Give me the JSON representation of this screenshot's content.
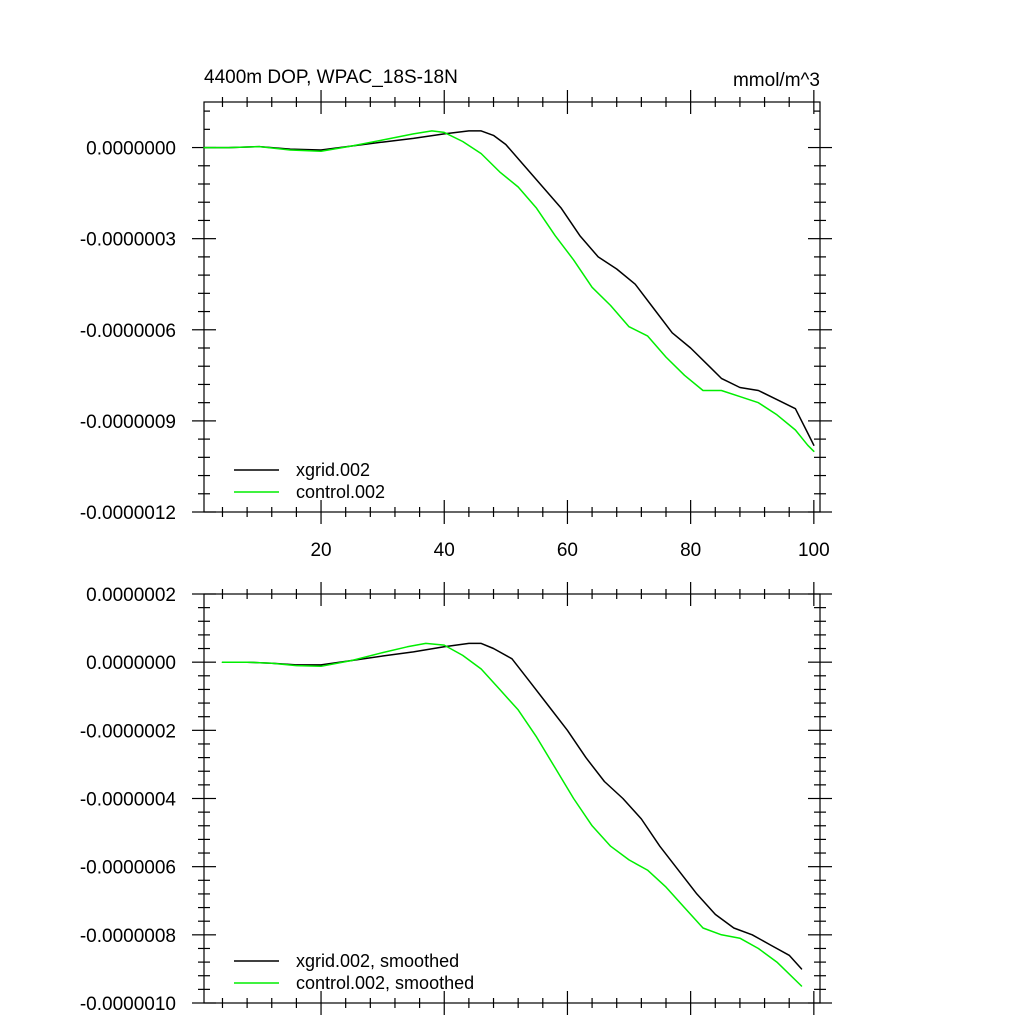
{
  "colors": {
    "xgrid": "#000000",
    "control": "#00ee00",
    "background": "#ffffff",
    "axis": "#000000"
  },
  "chart_data": [
    {
      "type": "line",
      "title": "4400m DOP, WPAC_18S-18N",
      "units": "mmol/m^3",
      "xlabel": "",
      "ylabel": "",
      "xlim": [
        1,
        101
      ],
      "ylim": [
        -1.2e-06,
        1.5e-07
      ],
      "x_ticks": [
        20,
        40,
        60,
        80,
        100
      ],
      "x_tick_labels": [
        "20",
        "40",
        "60",
        "80",
        "100"
      ],
      "y_ticks": [
        0,
        -3e-07,
        -6e-07,
        -9e-07,
        -1.2e-06
      ],
      "y_tick_labels": [
        "0.0000000",
        "-0.0000003",
        "-0.0000006",
        "-0.0000009",
        "-0.0000012"
      ],
      "legend_position": "bottom-left",
      "series": [
        {
          "name": "xgrid.002",
          "color": "#000000",
          "x": [
            1,
            5,
            10,
            15,
            20,
            25,
            30,
            35,
            40,
            44,
            46,
            48,
            50,
            53,
            56,
            59,
            62,
            65,
            68,
            71,
            74,
            77,
            80,
            83,
            85,
            88,
            91,
            94,
            97,
            99,
            100
          ],
          "y": [
            0,
            0,
            3e-09,
            -5e-09,
            -8e-09,
            5e-09,
            1.8e-08,
            3e-08,
            4.5e-08,
            5.5e-08,
            5.5e-08,
            4e-08,
            1e-08,
            -6e-08,
            -1.3e-07,
            -2e-07,
            -2.9e-07,
            -3.6e-07,
            -4e-07,
            -4.5e-07,
            -5.3e-07,
            -6.1e-07,
            -6.6e-07,
            -7.2e-07,
            -7.6e-07,
            -7.9e-07,
            -8e-07,
            -8.3e-07,
            -8.6e-07,
            -9.4e-07,
            -9.8e-07
          ]
        },
        {
          "name": "control.002",
          "color": "#00ee00",
          "x": [
            1,
            5,
            10,
            15,
            20,
            25,
            30,
            35,
            38,
            40,
            43,
            46,
            49,
            52,
            55,
            58,
            61,
            64,
            67,
            70,
            73,
            76,
            79,
            82,
            85,
            88,
            91,
            94,
            97,
            99,
            100
          ],
          "y": [
            0,
            0,
            3e-09,
            -8e-09,
            -1.2e-08,
            5e-09,
            2.5e-08,
            4.5e-08,
            5.5e-08,
            5e-08,
            2e-08,
            -2e-08,
            -8e-08,
            -1.3e-07,
            -2e-07,
            -2.9e-07,
            -3.7e-07,
            -4.6e-07,
            -5.2e-07,
            -5.9e-07,
            -6.2e-07,
            -6.9e-07,
            -7.5e-07,
            -8e-07,
            -8e-07,
            -8.2e-07,
            -8.4e-07,
            -8.8e-07,
            -9.3e-07,
            -9.8e-07,
            -1e-06
          ]
        }
      ]
    },
    {
      "type": "line",
      "title": "",
      "xlabel": "",
      "ylabel": "",
      "xlim": [
        1,
        101
      ],
      "ylim": [
        -1e-06,
        2e-07
      ],
      "x_ticks": [
        20,
        40,
        60,
        80,
        100
      ],
      "y_ticks": [
        2e-07,
        0,
        -2e-07,
        -4e-07,
        -6e-07,
        -8e-07,
        -1e-06
      ],
      "y_tick_labels": [
        "0.0000002",
        "0.0000000",
        "-0.0000002",
        "-0.0000004",
        "-0.0000006",
        "-0.0000008",
        "-0.0000010"
      ],
      "legend_position": "bottom-left",
      "series": [
        {
          "name": "xgrid.002, smoothed",
          "color": "#000000",
          "x": [
            4,
            8,
            12,
            16,
            20,
            25,
            30,
            35,
            40,
            44,
            46,
            48,
            51,
            54,
            57,
            60,
            63,
            66,
            69,
            72,
            75,
            78,
            81,
            84,
            87,
            90,
            93,
            96,
            98
          ],
          "y": [
            0,
            0,
            -3e-09,
            -8e-09,
            -8e-09,
            5e-09,
            1.8e-08,
            3e-08,
            4.5e-08,
            5.5e-08,
            5.5e-08,
            4e-08,
            1e-08,
            -6e-08,
            -1.3e-07,
            -2e-07,
            -2.8e-07,
            -3.5e-07,
            -4e-07,
            -4.6e-07,
            -5.4e-07,
            -6.1e-07,
            -6.8e-07,
            -7.4e-07,
            -7.8e-07,
            -8e-07,
            -8.3e-07,
            -8.6e-07,
            -9e-07
          ]
        },
        {
          "name": "control.002, smoothed",
          "color": "#00ee00",
          "x": [
            4,
            8,
            12,
            16,
            20,
            25,
            30,
            34,
            37,
            40,
            43,
            46,
            49,
            52,
            55,
            58,
            61,
            64,
            67,
            70,
            73,
            76,
            79,
            82,
            85,
            88,
            91,
            94,
            98
          ],
          "y": [
            0,
            0,
            -3e-09,
            -1e-08,
            -1.2e-08,
            5e-09,
            2.8e-08,
            4.5e-08,
            5.5e-08,
            5e-08,
            2e-08,
            -2e-08,
            -8e-08,
            -1.4e-07,
            -2.2e-07,
            -3.1e-07,
            -4e-07,
            -4.8e-07,
            -5.4e-07,
            -5.8e-07,
            -6.1e-07,
            -6.6e-07,
            -7.2e-07,
            -7.8e-07,
            -8e-07,
            -8.1e-07,
            -8.4e-07,
            -8.8e-07,
            -9.5e-07
          ]
        }
      ]
    }
  ]
}
